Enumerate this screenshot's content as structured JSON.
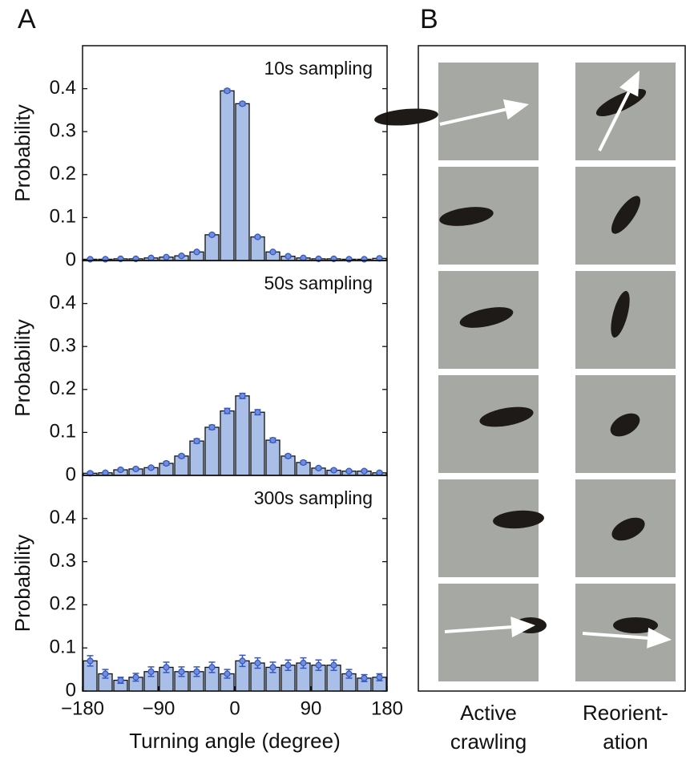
{
  "panel_labels": [
    "A",
    "B"
  ],
  "chart_data": [
    {
      "type": "histogram",
      "annotation": "10s sampling",
      "ylabel": "Probability",
      "bins": [
        -180,
        -162,
        -144,
        -126,
        -108,
        -90,
        -72,
        -54,
        -36,
        -18,
        0,
        18,
        36,
        54,
        72,
        90,
        108,
        126,
        144,
        162,
        180
      ],
      "values": [
        0.003,
        0.003,
        0.004,
        0.004,
        0.006,
        0.008,
        0.011,
        0.02,
        0.06,
        0.395,
        0.365,
        0.055,
        0.02,
        0.01,
        0.006,
        0.004,
        0.004,
        0.003,
        0.003,
        0.005
      ],
      "errors": [
        0.002,
        0.002,
        0.002,
        0.002,
        0.002,
        0.002,
        0.002,
        0.002,
        0.003,
        0.004,
        0.004,
        0.003,
        0.002,
        0.002,
        0.002,
        0.002,
        0.002,
        0.002,
        0.002,
        0.002
      ],
      "color": "#a9bfe8",
      "error_color": "#3555c0",
      "xlim": [
        -180,
        180
      ],
      "ylim": [
        0,
        0.5
      ],
      "yticks": [
        0,
        0.1,
        0.2,
        0.3,
        0.4
      ]
    },
    {
      "type": "histogram",
      "annotation": "50s sampling",
      "ylabel": "Probability",
      "bins": [
        -180,
        -162,
        -144,
        -126,
        -108,
        -90,
        -72,
        -54,
        -36,
        -18,
        0,
        18,
        36,
        54,
        72,
        90,
        108,
        126,
        144,
        162,
        180
      ],
      "values": [
        0.005,
        0.006,
        0.013,
        0.015,
        0.018,
        0.028,
        0.045,
        0.08,
        0.112,
        0.15,
        0.185,
        0.147,
        0.082,
        0.045,
        0.03,
        0.017,
        0.012,
        0.01,
        0.01,
        0.006
      ],
      "errors": [
        0.003,
        0.003,
        0.003,
        0.003,
        0.003,
        0.004,
        0.004,
        0.005,
        0.005,
        0.006,
        0.006,
        0.006,
        0.005,
        0.004,
        0.004,
        0.003,
        0.003,
        0.003,
        0.003,
        0.003
      ],
      "color": "#a9bfe8",
      "error_color": "#3555c0",
      "xlim": [
        -180,
        180
      ],
      "ylim": [
        0,
        0.5
      ],
      "yticks": [
        0,
        0.1,
        0.2,
        0.3,
        0.4
      ]
    },
    {
      "type": "histogram",
      "annotation": "300s sampling",
      "ylabel": "Probability",
      "xlabel": "Turning angle (degree)",
      "bins": [
        -180,
        -162,
        -144,
        -126,
        -108,
        -90,
        -72,
        -54,
        -36,
        -18,
        0,
        18,
        36,
        54,
        72,
        90,
        108,
        126,
        144,
        162,
        180
      ],
      "values": [
        0.07,
        0.04,
        0.025,
        0.032,
        0.045,
        0.055,
        0.045,
        0.045,
        0.055,
        0.04,
        0.07,
        0.065,
        0.055,
        0.06,
        0.065,
        0.06,
        0.06,
        0.04,
        0.03,
        0.032
      ],
      "errors": [
        0.012,
        0.01,
        0.007,
        0.009,
        0.011,
        0.012,
        0.011,
        0.011,
        0.012,
        0.01,
        0.013,
        0.012,
        0.012,
        0.012,
        0.012,
        0.012,
        0.012,
        0.01,
        0.008,
        0.008
      ],
      "color": "#a9bfe8",
      "error_color": "#3555c0",
      "xlim": [
        -180,
        180
      ],
      "ylim": [
        0,
        0.5
      ],
      "yticks": [
        0,
        0.1,
        0.2,
        0.3,
        0.4
      ],
      "xticks": [
        {
          "value": -180,
          "label": "−180"
        },
        {
          "value": -90,
          "label": "−90"
        },
        0,
        90,
        180
      ]
    }
  ],
  "panel_b": {
    "columns": [
      {
        "lines": [
          "Active",
          "crawling"
        ]
      },
      {
        "lines": [
          "Reorient-",
          "ation"
        ]
      }
    ]
  }
}
